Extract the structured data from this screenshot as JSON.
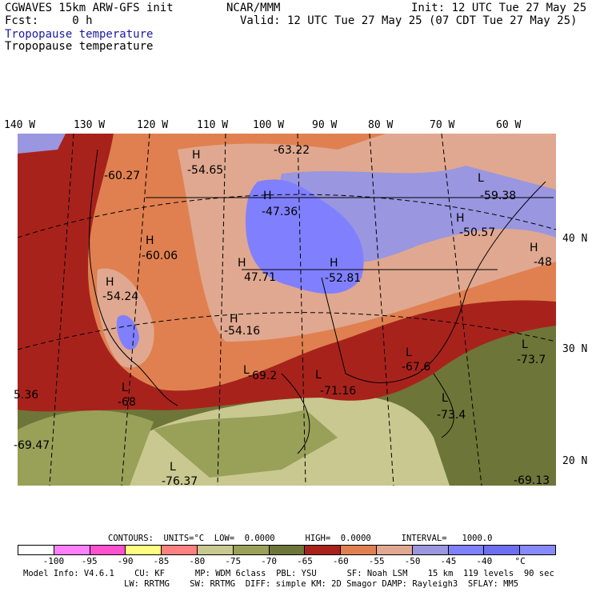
{
  "header": {
    "model": "CGWAVES 15km ARW-GFS init",
    "org": "NCAR/MMM",
    "init": "Init: 12 UTC Tue 27 May 25",
    "fcst": "Fcst:     0 h",
    "valid": "Valid: 12 UTC Tue 27 May 25 (07 CDT Tue 27 May 25)",
    "title_blue": "Tropopause temperature",
    "title_black": "Tropopause temperature"
  },
  "longitudes": [
    "140 W",
    "130 W",
    "120 W",
    "110 W",
    "100 W",
    "90 W",
    "80 W",
    "70 W",
    "60 W"
  ],
  "latitudes": [
    "40 N",
    "30 N",
    "20 N"
  ],
  "map": {
    "highs": [
      {
        "label": "H",
        "value": "-54.65"
      },
      {
        "label": "H",
        "value": "-60.06"
      },
      {
        "label": "H",
        "value": "-54.24"
      },
      {
        "label": "H",
        "value": "-47.36"
      },
      {
        "label": "H",
        "value": "47.71"
      },
      {
        "label": "H",
        "value": "-52.81"
      },
      {
        "label": "H",
        "value": "-54.16"
      },
      {
        "label": "H",
        "value": "-50.57"
      },
      {
        "label": "H",
        "value": "-48"
      }
    ],
    "lows": [
      {
        "label": "L",
        "value": "-59.38"
      },
      {
        "label": "L",
        "value": "-69.2"
      },
      {
        "label": "L",
        "value": "-71.16"
      },
      {
        "label": "L",
        "value": "-67.6"
      },
      {
        "label": "L",
        "value": "-73.4"
      },
      {
        "label": "L",
        "value": "-73.7"
      },
      {
        "label": "L",
        "value": "-76.37"
      },
      {
        "label": "L",
        "value": "-68"
      }
    ],
    "other_values": [
      "-63.22",
      "-60.27",
      "5.36",
      "-69.47",
      "-69.13"
    ]
  },
  "contours_line": "CONTOURS:  UNITS=°C  LOW=  0.0000      HIGH=  0.0000      INTERVAL=   1000.0",
  "colorbar": {
    "colors": [
      "#ffffff",
      "#ff80ff",
      "#ff50d0",
      "#ffff80",
      "#ff8080",
      "#c8c890",
      "#99a058",
      "#6e7538",
      "#a8221c",
      "#e08050",
      "#e0a890",
      "#9a96e0",
      "#8080ff",
      "#6e6ef0",
      "#8888ff"
    ],
    "ticks": [
      "-100",
      "-95",
      "-90",
      "-85",
      "-80",
      "-75",
      "-70",
      "-65",
      "-60",
      "-55",
      "-50",
      "-45",
      "-40",
      "°C"
    ]
  },
  "footer": {
    "line1": "Model Info: V4.6.1    CU: KF      MP: WDM 6class  PBL: YSU      SF: Noah LSM    15 km  119 levels  90 sec",
    "line2": "LW: RRTMG    SW: RRTMG  DIFF: simple KM: 2D Smagor DAMP: Rayleigh3  SFLAY: MM5"
  }
}
